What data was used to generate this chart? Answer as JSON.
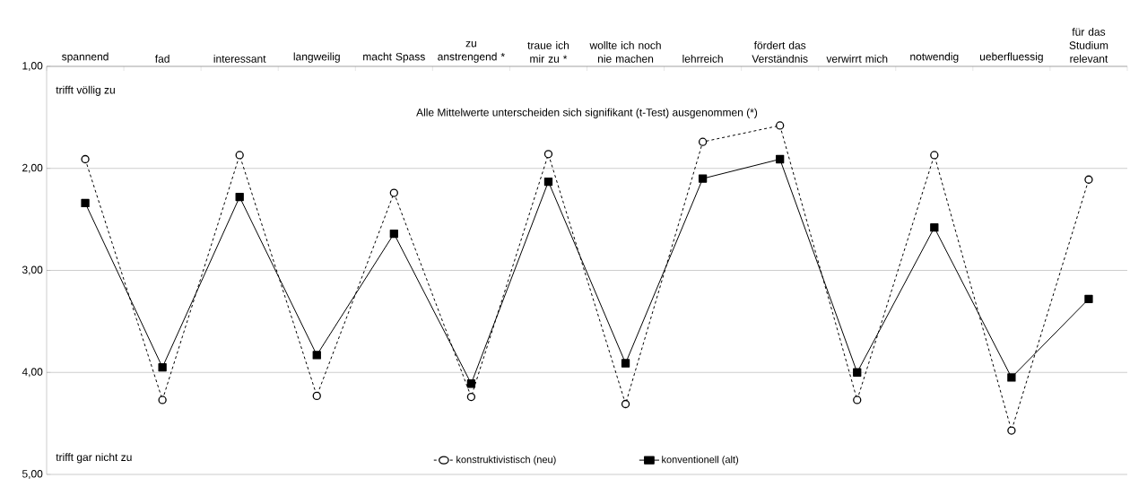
{
  "chart_data": {
    "type": "line",
    "categories": [
      "spannend",
      "fad",
      "interessant",
      "langweilig",
      "macht Spass",
      "zu anstrengend *",
      "traue ich mir zu *",
      "wollte ich noch nie machen",
      "lehrreich",
      "fördert das Verständnis",
      "verwirrt mich",
      "notwendig",
      "ueberfluessig",
      "für das Studium relevant"
    ],
    "series": [
      {
        "name": "konstruktivistisch (neu)",
        "color": "#000000",
        "marker": "circle",
        "line_style": "dashed",
        "values": [
          1.91,
          4.27,
          1.87,
          4.23,
          2.24,
          4.24,
          1.86,
          4.31,
          1.74,
          1.58,
          4.27,
          1.87,
          4.57,
          2.11
        ]
      },
      {
        "name": "konventionell (alt)",
        "color": "#000000",
        "marker": "square",
        "line_style": "solid",
        "values": [
          2.34,
          3.95,
          2.28,
          3.83,
          2.64,
          4.11,
          2.13,
          3.91,
          2.1,
          1.91,
          4.0,
          2.58,
          4.05,
          3.28
        ]
      }
    ],
    "ylim": [
      5,
      1
    ],
    "yticks": [
      {
        "value": 1,
        "label": "1,00"
      },
      {
        "value": 2,
        "label": "2,00"
      },
      {
        "value": 3,
        "label": "3,00"
      },
      {
        "value": 4,
        "label": "4,00"
      },
      {
        "value": 5,
        "label": "5,00"
      }
    ],
    "grid": "y",
    "legend": "bottom",
    "annotations": [
      "trifft  völlig zu",
      "Alle Mittelwerte unterscheiden sich signifikant (t-Test) ausgenommen (*)",
      "trifft  gar nicht zu"
    ]
  }
}
